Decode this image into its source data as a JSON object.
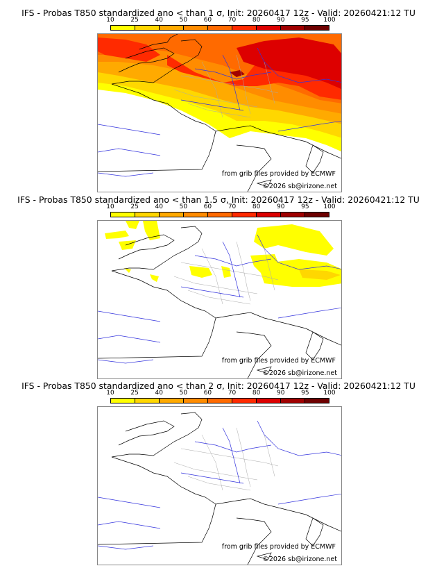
{
  "colorbar": {
    "ticks": [
      "10",
      "25",
      "40",
      "50",
      "60",
      "70",
      "80",
      "90",
      "95",
      "100"
    ],
    "colors": [
      "#ffff00",
      "#ffd700",
      "#ffaa00",
      "#ff8c00",
      "#ff6a00",
      "#ff2a00",
      "#dd0000",
      "#a00000",
      "#6e0000"
    ]
  },
  "panels": [
    {
      "title": "IFS - Probas T850  standardized ano < than 1 σ, Init: 20260417 12z - Valid: 20260421:12 TU",
      "level": "1",
      "source_text": "from grib files provided by ECMWF",
      "copyright": "©2026 sb@irizone.net"
    },
    {
      "title": "IFS - Probas T850  standardized ano < than 1.5 σ, Init: 20260417 12z - Valid: 20260421:12 TU",
      "level": "1.5",
      "source_text": "from grib files provided by ECMWF",
      "copyright": "©2026 sb@irizone.net"
    },
    {
      "title": "IFS - Probas T850  standardized ano < than 2 σ, Init: 20260417 12z - Valid: 20260421:12 TU",
      "level": "2",
      "source_text": "from grib files provided by ECMWF",
      "copyright": "©2026 sb@irizone.net"
    }
  ]
}
